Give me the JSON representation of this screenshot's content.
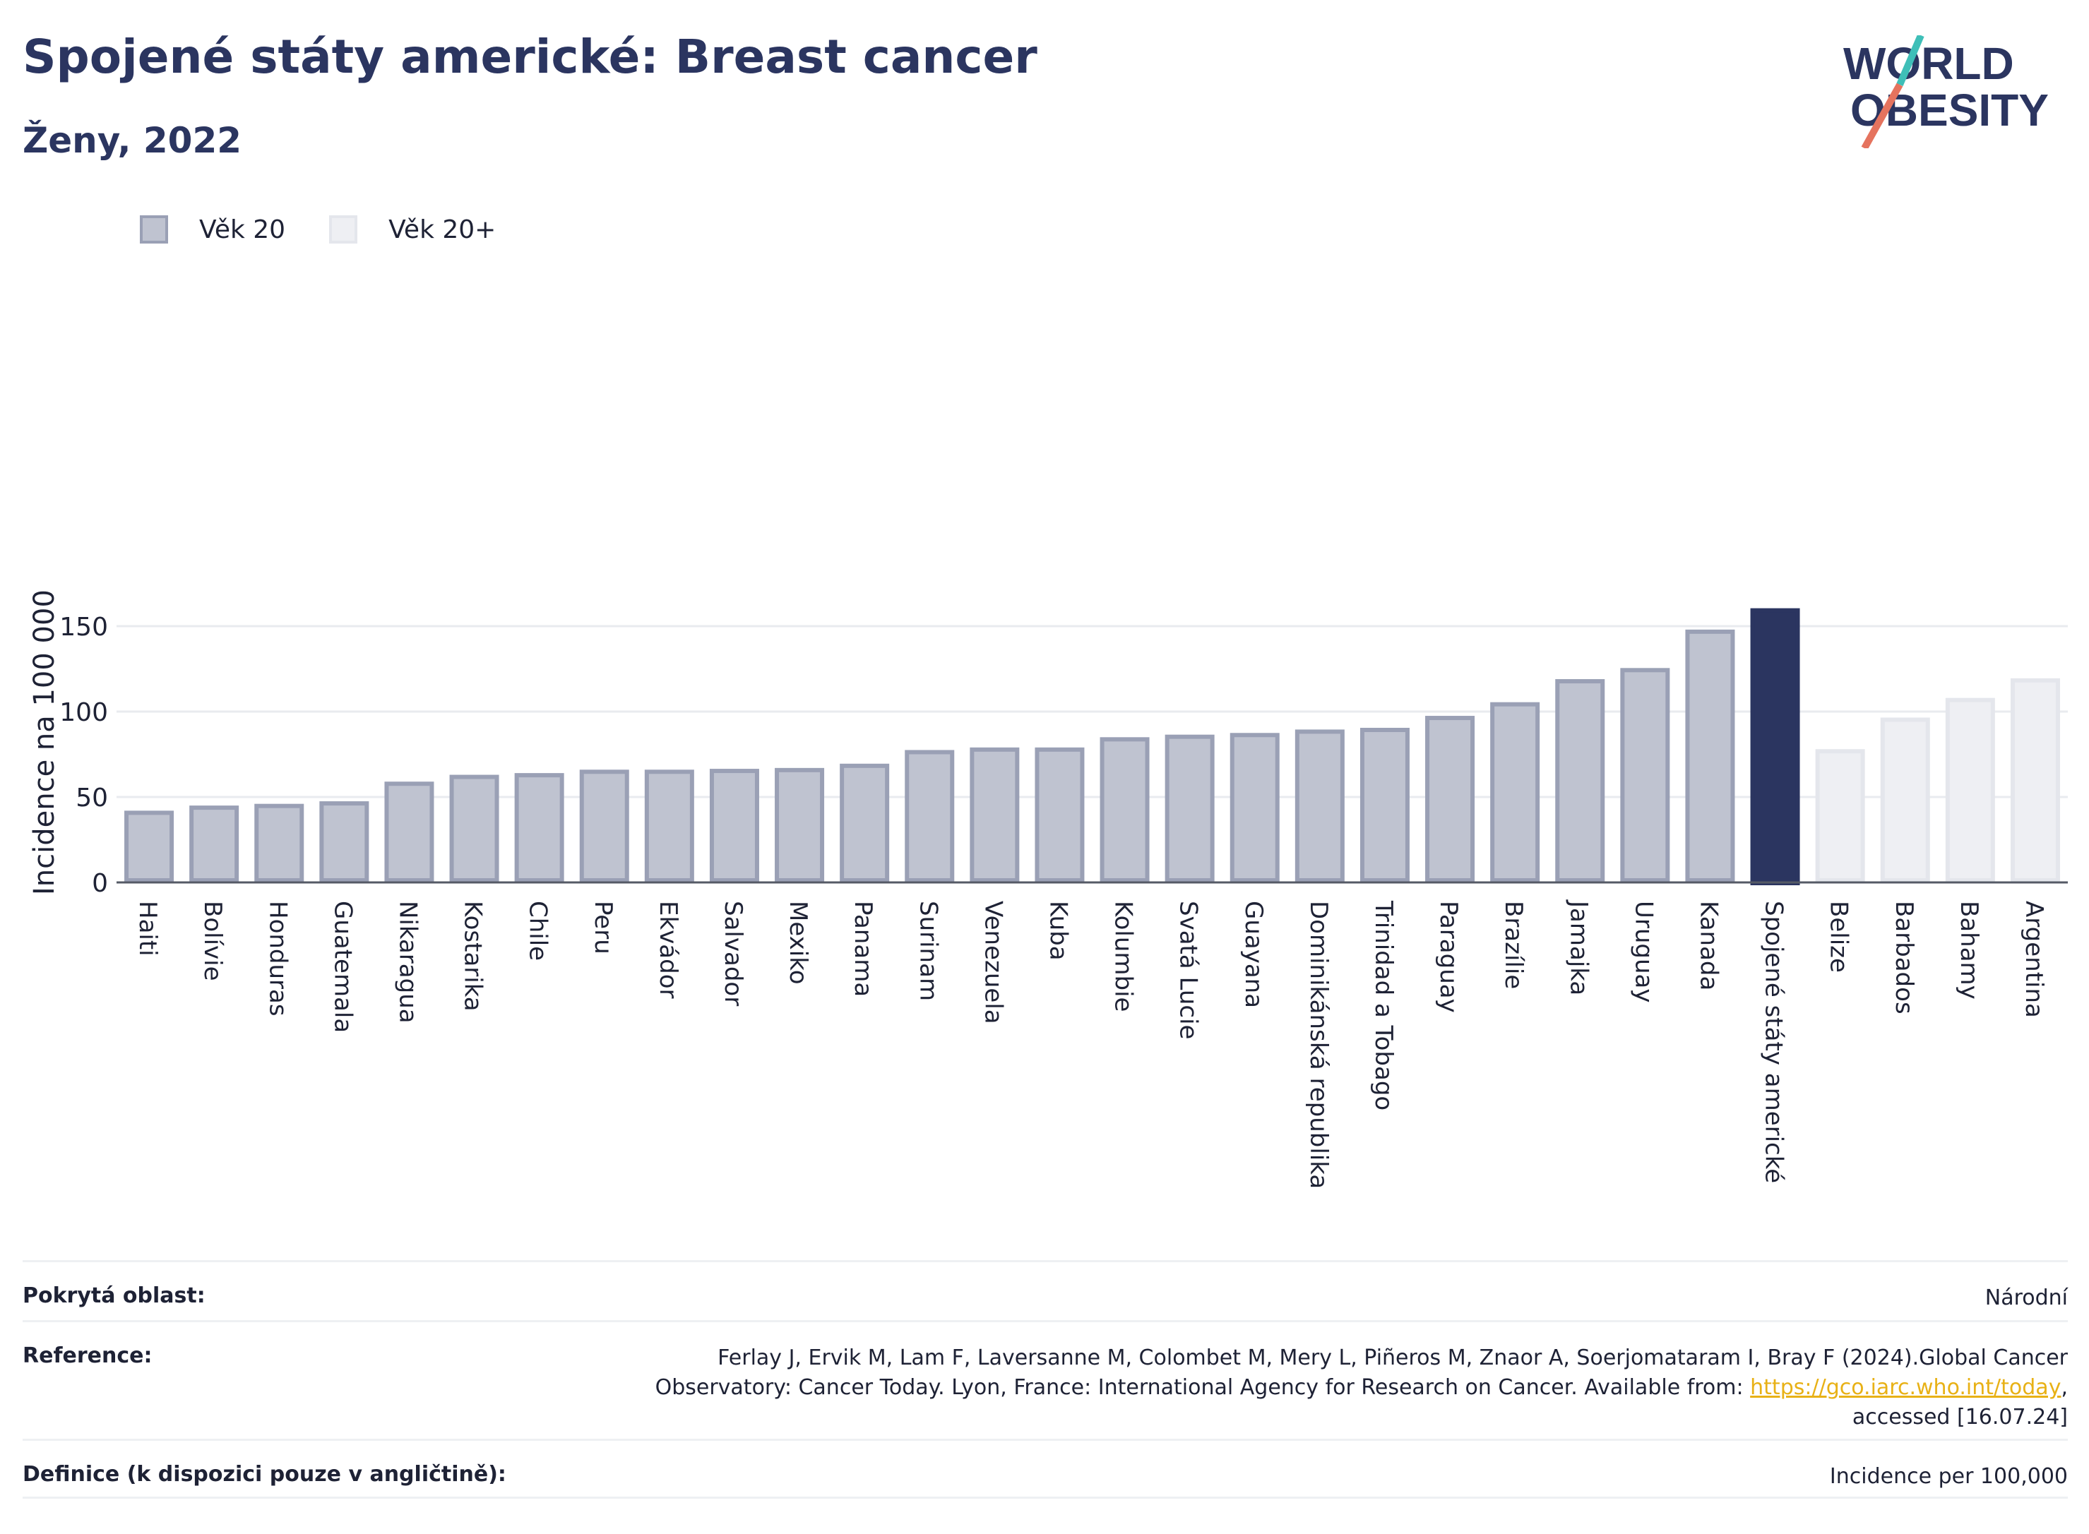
{
  "header": {
    "title": "Spojené státy americké: Breast cancer",
    "subtitle": "Ženy, 2022"
  },
  "logo": {
    "line1": "WORLD",
    "line2": "OBESITY"
  },
  "legend": {
    "age20": "Věk 20",
    "age20plus": "Věk 20+"
  },
  "colors": {
    "age20_fill": "#bfc3d0",
    "age20_stroke": "#9aa0b5",
    "highlight": "#2b3560",
    "age20plus_fill": "#eeeff3",
    "age20plus_stroke": "#e4e6ec"
  },
  "chart_data": {
    "type": "bar",
    "ylabel": "Incidence na 100 000",
    "ylim": [
      0,
      165
    ],
    "yticks": [
      0,
      50,
      100,
      150
    ],
    "grid": true,
    "legend_position": "top-left",
    "categories": [
      "Haiti",
      "Bolívie",
      "Honduras",
      "Guatemala",
      "Nikaragua",
      "Kostarika",
      "Chile",
      "Peru",
      "Ekvádor",
      "Salvador",
      "Mexiko",
      "Panama",
      "Surinam",
      "Venezuela",
      "Kuba",
      "Kolumbie",
      "Svatá Lucie",
      "Guayana",
      "Dominikánská republika",
      "Trinidad a Tobago",
      "Paraguay",
      "Brazílie",
      "Jamajka",
      "Uruguay",
      "Kanada",
      "Spojené státy americké",
      "Belize",
      "Barbados",
      "Bahamy",
      "Argentina"
    ],
    "values": [
      42,
      45,
      46,
      47.5,
      59,
      63,
      64,
      66,
      66,
      66.5,
      67,
      69.5,
      77.5,
      79,
      79,
      85,
      86.5,
      87.5,
      89.5,
      90.5,
      97.5,
      105.5,
      119,
      125.5,
      148,
      160.5,
      78,
      96.5,
      108,
      119.5
    ],
    "groups": [
      "Věk 20",
      "Věk 20",
      "Věk 20",
      "Věk 20",
      "Věk 20",
      "Věk 20",
      "Věk 20",
      "Věk 20",
      "Věk 20",
      "Věk 20",
      "Věk 20",
      "Věk 20",
      "Věk 20",
      "Věk 20",
      "Věk 20",
      "Věk 20",
      "Věk 20",
      "Věk 20",
      "Věk 20",
      "Věk 20",
      "Věk 20",
      "Věk 20",
      "Věk 20",
      "Věk 20",
      "Věk 20",
      "highlight",
      "Věk 20+",
      "Věk 20+",
      "Věk 20+",
      "Věk 20+"
    ]
  },
  "footer": {
    "coverage_label": "Pokrytá oblast:",
    "coverage_value": "Národní",
    "reference_label": "Reference:",
    "reference_text_1": "Ferlay J, Ervik M, Lam F, Laversanne M, Colombet M, Mery L, Piñeros M, Znaor A, Soerjomataram I, Bray F (2024).Global Cancer",
    "reference_text_2": "Observatory: Cancer Today. Lyon, France: International Agency for Research on Cancer. Available from: ",
    "reference_link": "https://gco.iarc.who.int/today",
    "reference_text_3": ",",
    "reference_text_4": "accessed [16.07.24]",
    "definition_label": "Definice (k dispozici pouze v angličtině):",
    "definition_value": "Incidence per 100,000"
  }
}
